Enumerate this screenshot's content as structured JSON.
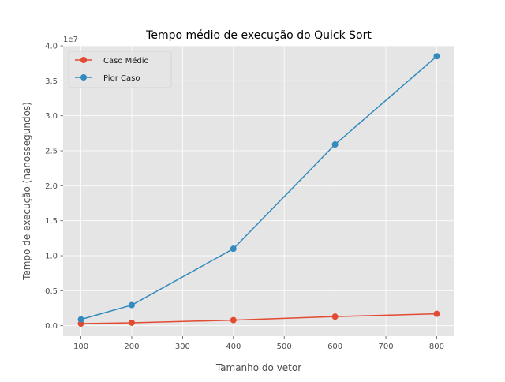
{
  "chart_data": {
    "type": "line",
    "title": "Tempo médio de execução do Quick Sort",
    "xlabel": "Tamanho do vetor",
    "ylabel": "Tempo de execução (nanossegundos)",
    "y_offset_label": "1e7",
    "x": [
      100,
      200,
      400,
      600,
      800
    ],
    "xlim": [
      65,
      835
    ],
    "ylim": [
      -1500000,
      40000000
    ],
    "x_ticks": [
      100,
      200,
      300,
      400,
      500,
      600,
      700,
      800
    ],
    "x_tick_labels": [
      "100",
      "200",
      "300",
      "400",
      "500",
      "600",
      "700",
      "800"
    ],
    "y_ticks": [
      0,
      5000000,
      10000000,
      15000000,
      20000000,
      25000000,
      30000000,
      35000000,
      40000000
    ],
    "y_tick_labels": [
      "0.0",
      "0.5",
      "1.0",
      "1.5",
      "2.0",
      "2.5",
      "3.0",
      "3.5",
      "4.0"
    ],
    "grid": true,
    "legend_position": "top-left",
    "series": [
      {
        "name": "Caso Médio",
        "color": "#E24A33",
        "values": [
          300000,
          420000,
          800000,
          1300000,
          1700000
        ]
      },
      {
        "name": "Pior Caso",
        "color": "#348ABD",
        "values": [
          900000,
          2950000,
          11000000,
          25900000,
          38500000
        ]
      }
    ]
  }
}
